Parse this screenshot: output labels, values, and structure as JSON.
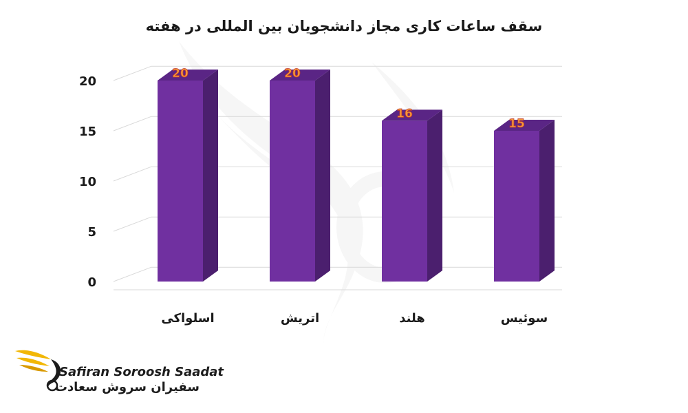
{
  "chart_data": {
    "type": "bar",
    "title": "سقف ساعات کاری مجاز دانشجویان بین المللی در هفته",
    "categories": [
      "اسلواکی",
      "اتریش",
      "هلند",
      "سوئیس"
    ],
    "values": [
      20,
      20,
      16,
      15
    ],
    "data_labels": [
      "20",
      "20",
      "16",
      "15"
    ],
    "y_ticks": [
      0,
      5,
      10,
      15,
      20
    ],
    "y_tick_labels": [
      "0",
      "5",
      "10",
      "15",
      "20"
    ],
    "ylim": [
      0,
      20
    ],
    "grid": true,
    "three_d": true,
    "xlabel": "",
    "ylabel": "",
    "colors": {
      "bar_front": "#7030a0",
      "bar_side": "#4b1f6e",
      "bar_top": "#5a2585",
      "data_label": "#f59a3a",
      "data_label_outline": "#c0392b",
      "text": "#1a1a1a",
      "grid": "#d9d9d9"
    }
  },
  "logo": {
    "latin": "Safiran Soroosh Saadat",
    "persian": "سفیران سروش سعادت",
    "icon": "eagle-wing-icon",
    "colors": {
      "wing": "#f2b705",
      "wing_dark": "#d99a00",
      "text": "#1c1c1c"
    }
  },
  "watermark": {
    "icon": "eagle-wing-watermark-icon"
  }
}
